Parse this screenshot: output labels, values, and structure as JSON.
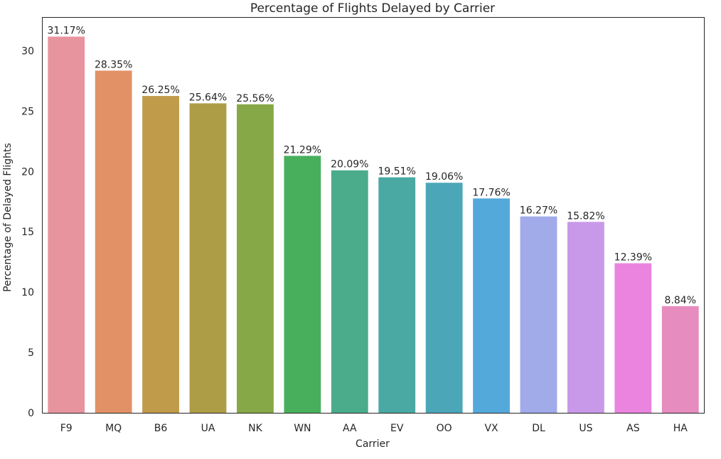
{
  "chart_data": {
    "type": "bar",
    "title": "Percentage of Flights Delayed by Carrier",
    "xlabel": "Carrier",
    "ylabel": "Percentage of Delayed Flights",
    "categories": [
      "F9",
      "MQ",
      "B6",
      "UA",
      "NK",
      "WN",
      "AA",
      "EV",
      "OO",
      "VX",
      "DL",
      "US",
      "AS",
      "HA"
    ],
    "values": [
      31.17,
      28.35,
      26.25,
      25.64,
      25.56,
      21.29,
      20.09,
      19.51,
      19.06,
      17.76,
      16.27,
      15.82,
      12.39,
      8.84
    ],
    "value_labels": [
      "31.17%",
      "28.35%",
      "26.25%",
      "25.64%",
      "25.56%",
      "21.29%",
      "20.09%",
      "19.51%",
      "19.06%",
      "17.76%",
      "16.27%",
      "15.82%",
      "12.39%",
      "8.84%"
    ],
    "colors": [
      "#e8949f",
      "#e29166",
      "#bf9b4a",
      "#ae9d47",
      "#86a846",
      "#48af5d",
      "#4aac8b",
      "#4aa9a2",
      "#4ba6b8",
      "#54a9db",
      "#a1abe9",
      "#c999e9",
      "#ea84df",
      "#e68cbf"
    ],
    "ylim": [
      0,
      32.73
    ],
    "yticks": [
      0,
      5,
      10,
      15,
      20,
      25,
      30
    ],
    "grid": false,
    "legend": "none"
  }
}
